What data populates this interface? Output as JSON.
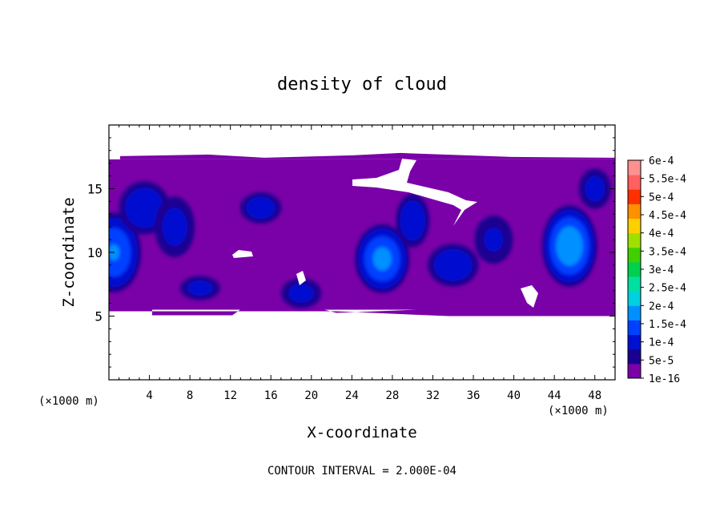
{
  "chart_data": {
    "type": "heatmap",
    "title": "density of cloud",
    "xlabel": "X-coordinate",
    "ylabel": "Z-coordinate",
    "x_unit": "(×1000 m)",
    "x_unit_right": "(×1000 m)",
    "footer": "CONTOUR INTERVAL = 2.000E-04",
    "xlim": [
      0,
      50
    ],
    "ylim": [
      0,
      20
    ],
    "x_ticks": [
      4,
      8,
      12,
      16,
      20,
      24,
      28,
      32,
      36,
      40,
      44,
      48
    ],
    "y_ticks": [
      5,
      10,
      15
    ],
    "grid": false,
    "colorbar": {
      "labels": [
        "1e-16",
        "5e-5",
        "1e-4",
        "1.5e-4",
        "2e-4",
        "2.5e-4",
        "3e-4",
        "3.5e-4",
        "4e-4",
        "4.5e-4",
        "5e-4",
        "5.5e-4",
        "6e-4"
      ],
      "colors": [
        "#7a00a8",
        "#1a0090",
        "#0010d0",
        "#0040ff",
        "#0090ff",
        "#00d0e0",
        "#00e0a0",
        "#00d050",
        "#40d000",
        "#a0e000",
        "#ffd000",
        "#ff9000",
        "#ff3000",
        "#ff6060",
        "#ff9090"
      ]
    },
    "field": {
      "cloud_base_z": 5.5,
      "cloud_top_z": 17.3,
      "blobs": [
        {
          "x": 0.5,
          "z": 10,
          "density": 0.00015,
          "sx": 3.0,
          "sz": 3.5
        },
        {
          "x": 3.5,
          "z": 13.5,
          "density": 0.0001,
          "sx": 3.0,
          "sz": 2.5
        },
        {
          "x": 6.5,
          "z": 12,
          "density": 8e-05,
          "sx": 2.5,
          "sz": 3.0
        },
        {
          "x": 9,
          "z": 7.2,
          "density": 8e-05,
          "sx": 2.5,
          "sz": 1.2
        },
        {
          "x": 15,
          "z": 13.5,
          "density": 9e-05,
          "sx": 2.5,
          "sz": 1.5
        },
        {
          "x": 19,
          "z": 6.8,
          "density": 8e-05,
          "sx": 2.5,
          "sz": 1.5
        },
        {
          "x": 27,
          "z": 9.5,
          "density": 0.00016,
          "sx": 3.0,
          "sz": 3.0
        },
        {
          "x": 30,
          "z": 12.5,
          "density": 0.0001,
          "sx": 2.0,
          "sz": 2.5
        },
        {
          "x": 34,
          "z": 9,
          "density": 0.0001,
          "sx": 3.0,
          "sz": 2.0
        },
        {
          "x": 38,
          "z": 11,
          "density": 7e-05,
          "sx": 2.5,
          "sz": 2.5
        },
        {
          "x": 45.5,
          "z": 10.5,
          "density": 0.00018,
          "sx": 3.0,
          "sz": 3.5
        },
        {
          "x": 48,
          "z": 15,
          "density": 8e-05,
          "sx": 2.0,
          "sz": 2.0
        }
      ]
    }
  }
}
